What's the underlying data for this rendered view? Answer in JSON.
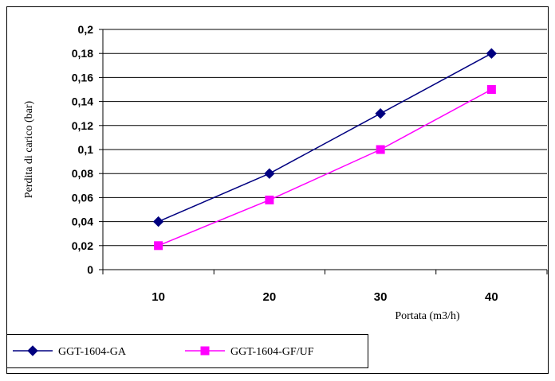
{
  "chart_data": {
    "type": "line",
    "title": "",
    "xlabel": "Portata (m3/h)",
    "ylabel": "Perdita di carico (bar)",
    "categories": [
      "10",
      "20",
      "30",
      "40"
    ],
    "ylim": [
      0,
      0.2
    ],
    "ytick_step": 0.02,
    "yticks": [
      "0",
      "0,02",
      "0,04",
      "0,06",
      "0,08",
      "0,1",
      "0,12",
      "0,14",
      "0,16",
      "0,18",
      "0,2"
    ],
    "grid": true,
    "legend_position": "bottom-left",
    "series": [
      {
        "name": "GGT-1604-GA",
        "values": [
          0.04,
          0.08,
          0.13,
          0.18
        ],
        "color": "#000080",
        "marker": "diamond"
      },
      {
        "name": "GGT-1604-GF/UF",
        "values": [
          0.02,
          0.058,
          0.1,
          0.15
        ],
        "color": "#FF00FF",
        "marker": "square"
      }
    ]
  }
}
